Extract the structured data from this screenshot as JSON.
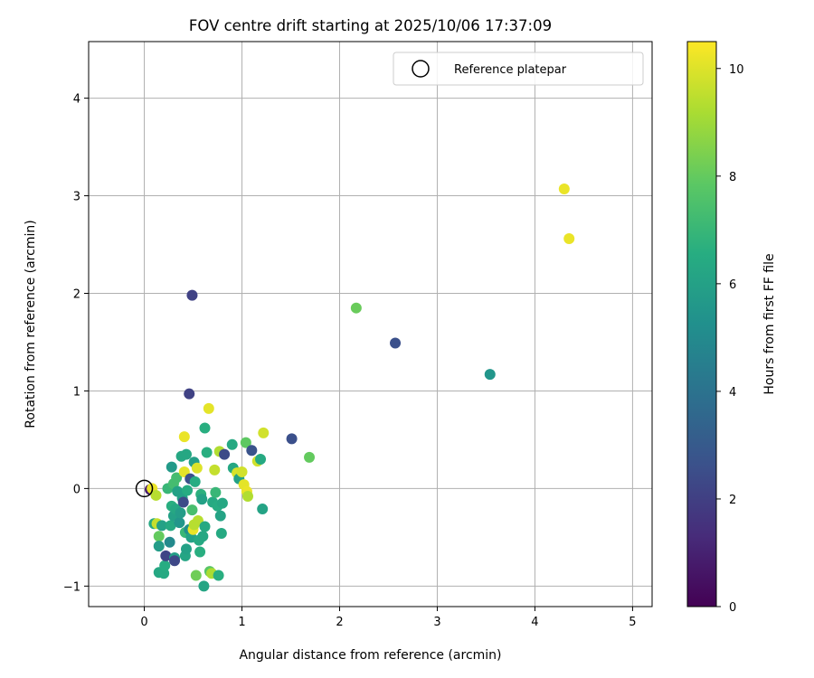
{
  "chart_data": {
    "type": "scatter",
    "title": "FOV centre drift starting at 2025/10/06 17:37:09",
    "xlabel": "Angular distance from reference (arcmin)",
    "ylabel": "Rotation from reference (arcmin)",
    "xlim": [
      -0.57,
      5.2
    ],
    "ylim": [
      -1.21,
      4.58
    ],
    "x_ticks": [
      0,
      1,
      2,
      3,
      4,
      5
    ],
    "x_tick_labels": [
      "0",
      "1",
      "2",
      "3",
      "4",
      "5"
    ],
    "y_ticks": [
      -1,
      0,
      1,
      2,
      3,
      4
    ],
    "y_tick_labels": [
      "−1",
      "0",
      "1",
      "2",
      "3",
      "4"
    ],
    "grid": true,
    "legend": {
      "position": "top-right",
      "label": "Reference platepar"
    },
    "reference_point": {
      "x": 0,
      "y": 0
    },
    "colorbar": {
      "label": "Hours from first FF file",
      "range": [
        0,
        10.5
      ],
      "colormap": "viridis",
      "ticks": [
        0,
        2,
        4,
        6,
        8,
        10
      ],
      "tick_labels": [
        "0",
        "2",
        "4",
        "6",
        "8",
        "10"
      ]
    },
    "points": [
      {
        "x": 0.06,
        "y": -0.01,
        "h": 0.8
      },
      {
        "x": 0.08,
        "y": 0.0,
        "h": 10.2
      },
      {
        "x": 0.12,
        "y": -0.07,
        "h": 9.4
      },
      {
        "x": 0.1,
        "y": -0.36,
        "h": 6.4
      },
      {
        "x": 0.13,
        "y": -0.36,
        "h": 9.6
      },
      {
        "x": 0.15,
        "y": -0.49,
        "h": 8.0
      },
      {
        "x": 0.15,
        "y": -0.59,
        "h": 5.8
      },
      {
        "x": 0.15,
        "y": -0.86,
        "h": 6.3
      },
      {
        "x": 0.18,
        "y": -0.38,
        "h": 6.0
      },
      {
        "x": 0.2,
        "y": -0.87,
        "h": 6.4
      },
      {
        "x": 0.21,
        "y": -0.79,
        "h": 6.5
      },
      {
        "x": 0.22,
        "y": -0.69,
        "h": 2.2
      },
      {
        "x": 0.24,
        "y": 0.0,
        "h": 7.0
      },
      {
        "x": 0.26,
        "y": -0.55,
        "h": 5.0
      },
      {
        "x": 0.27,
        "y": -0.38,
        "h": 6.4
      },
      {
        "x": 0.28,
        "y": -0.18,
        "h": 6.6
      },
      {
        "x": 0.28,
        "y": 0.22,
        "h": 5.7
      },
      {
        "x": 0.3,
        "y": -0.28,
        "h": 6.0
      },
      {
        "x": 0.3,
        "y": 0.05,
        "h": 7.3
      },
      {
        "x": 0.31,
        "y": -0.71,
        "h": 5.9
      },
      {
        "x": 0.31,
        "y": -0.74,
        "h": 2.3
      },
      {
        "x": 0.32,
        "y": -0.21,
        "h": 6.3
      },
      {
        "x": 0.33,
        "y": 0.11,
        "h": 7.3
      },
      {
        "x": 0.34,
        "y": -0.03,
        "h": 6.0
      },
      {
        "x": 0.36,
        "y": -0.35,
        "h": 5.5
      },
      {
        "x": 0.37,
        "y": -0.25,
        "h": 5.8
      },
      {
        "x": 0.38,
        "y": 0.33,
        "h": 6.3
      },
      {
        "x": 0.39,
        "y": -0.1,
        "h": 6.0
      },
      {
        "x": 0.4,
        "y": -0.14,
        "h": 2.4
      },
      {
        "x": 0.41,
        "y": 0.53,
        "h": 10.2
      },
      {
        "x": 0.41,
        "y": 0.17,
        "h": 10.1
      },
      {
        "x": 0.42,
        "y": -0.45,
        "h": 7.0
      },
      {
        "x": 0.42,
        "y": -0.69,
        "h": 6.2
      },
      {
        "x": 0.43,
        "y": 0.35,
        "h": 6.3
      },
      {
        "x": 0.43,
        "y": -0.62,
        "h": 6.0
      },
      {
        "x": 0.44,
        "y": -0.02,
        "h": 6.5
      },
      {
        "x": 0.46,
        "y": 0.97,
        "h": 2.1
      },
      {
        "x": 0.46,
        "y": -0.42,
        "h": 5.2
      },
      {
        "x": 0.47,
        "y": 0.1,
        "h": 2.6
      },
      {
        "x": 0.48,
        "y": -0.5,
        "h": 6.0
      },
      {
        "x": 0.49,
        "y": 1.98,
        "h": 2.1
      },
      {
        "x": 0.49,
        "y": -0.22,
        "h": 7.4
      },
      {
        "x": 0.5,
        "y": -0.42,
        "h": 10.2
      },
      {
        "x": 0.51,
        "y": -0.37,
        "h": 9.4
      },
      {
        "x": 0.51,
        "y": 0.27,
        "h": 5.9
      },
      {
        "x": 0.52,
        "y": 0.07,
        "h": 6.5
      },
      {
        "x": 0.53,
        "y": -0.89,
        "h": 8.2
      },
      {
        "x": 0.54,
        "y": 0.21,
        "h": 10.0
      },
      {
        "x": 0.55,
        "y": -0.33,
        "h": 9.4
      },
      {
        "x": 0.56,
        "y": -0.53,
        "h": 6.4
      },
      {
        "x": 0.57,
        "y": -0.65,
        "h": 6.6
      },
      {
        "x": 0.58,
        "y": -0.06,
        "h": 6.7
      },
      {
        "x": 0.59,
        "y": -0.11,
        "h": 6.0
      },
      {
        "x": 0.6,
        "y": -0.49,
        "h": 6.3
      },
      {
        "x": 0.61,
        "y": -1.0,
        "h": 6.2
      },
      {
        "x": 0.62,
        "y": 0.62,
        "h": 6.6
      },
      {
        "x": 0.62,
        "y": -0.39,
        "h": 6.4
      },
      {
        "x": 0.64,
        "y": 0.37,
        "h": 6.6
      },
      {
        "x": 0.66,
        "y": 0.82,
        "h": 10.1
      },
      {
        "x": 0.67,
        "y": -0.85,
        "h": 7.8
      },
      {
        "x": 0.69,
        "y": -0.87,
        "h": 9.2
      },
      {
        "x": 0.7,
        "y": -0.14,
        "h": 6.4
      },
      {
        "x": 0.72,
        "y": 0.19,
        "h": 9.6
      },
      {
        "x": 0.73,
        "y": -0.04,
        "h": 7.0
      },
      {
        "x": 0.75,
        "y": -0.18,
        "h": 6.5
      },
      {
        "x": 0.76,
        "y": -0.89,
        "h": 6.6
      },
      {
        "x": 0.77,
        "y": 0.38,
        "h": 9.3
      },
      {
        "x": 0.78,
        "y": -0.28,
        "h": 6.1
      },
      {
        "x": 0.79,
        "y": -0.46,
        "h": 6.4
      },
      {
        "x": 0.8,
        "y": -0.15,
        "h": 6.3
      },
      {
        "x": 0.82,
        "y": 0.35,
        "h": 2.4
      },
      {
        "x": 0.9,
        "y": 0.45,
        "h": 6.4
      },
      {
        "x": 0.91,
        "y": 0.21,
        "h": 6.3
      },
      {
        "x": 0.95,
        "y": 0.16,
        "h": 9.9
      },
      {
        "x": 0.97,
        "y": 0.1,
        "h": 6.0
      },
      {
        "x": 1.0,
        "y": 0.17,
        "h": 9.8
      },
      {
        "x": 1.02,
        "y": 0.04,
        "h": 10.1
      },
      {
        "x": 1.04,
        "y": 0.47,
        "h": 7.9
      },
      {
        "x": 1.05,
        "y": -0.03,
        "h": 10.2
      },
      {
        "x": 1.06,
        "y": -0.08,
        "h": 9.3
      },
      {
        "x": 1.1,
        "y": 0.39,
        "h": 2.7
      },
      {
        "x": 1.16,
        "y": 0.28,
        "h": 9.8
      },
      {
        "x": 1.19,
        "y": 0.3,
        "h": 6.4
      },
      {
        "x": 1.21,
        "y": -0.21,
        "h": 6.1
      },
      {
        "x": 1.22,
        "y": 0.57,
        "h": 9.8
      },
      {
        "x": 1.51,
        "y": 0.51,
        "h": 2.6
      },
      {
        "x": 1.69,
        "y": 0.32,
        "h": 8.0
      },
      {
        "x": 2.17,
        "y": 1.85,
        "h": 8.1
      },
      {
        "x": 2.57,
        "y": 1.49,
        "h": 2.6
      },
      {
        "x": 3.54,
        "y": 1.17,
        "h": 5.5
      },
      {
        "x": 4.3,
        "y": 3.07,
        "h": 10.2
      },
      {
        "x": 4.35,
        "y": 2.56,
        "h": 10.2
      }
    ]
  }
}
